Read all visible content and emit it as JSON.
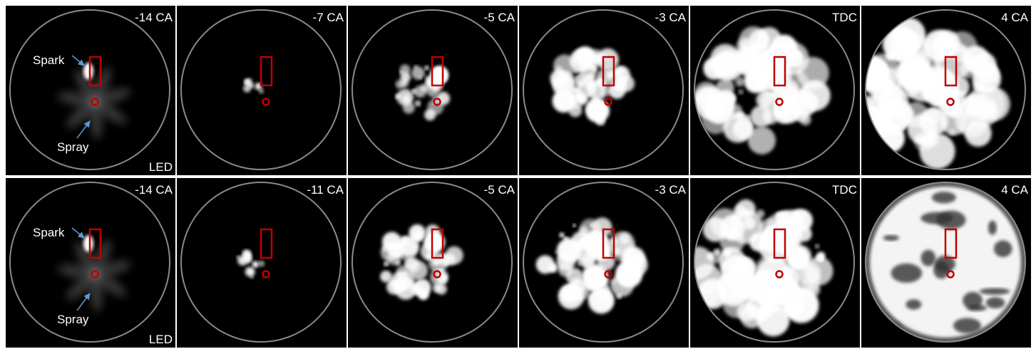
{
  "rows": [
    {
      "panels": [
        {
          "label": "-14 CA",
          "spark": "Spark",
          "spray": "Spray",
          "led": "LED"
        },
        {
          "label": "-7 CA"
        },
        {
          "label": "-5 CA"
        },
        {
          "label": "-3 CA"
        },
        {
          "label": "TDC"
        },
        {
          "label": "4 CA"
        }
      ]
    },
    {
      "panels": [
        {
          "label": "-14 CA",
          "spark": "Spark",
          "spray": "Spray",
          "led": "LED"
        },
        {
          "label": "-11 CA"
        },
        {
          "label": "-5 CA"
        },
        {
          "label": "-3 CA"
        },
        {
          "label": "TDC"
        },
        {
          "label": "4 CA"
        }
      ]
    }
  ]
}
